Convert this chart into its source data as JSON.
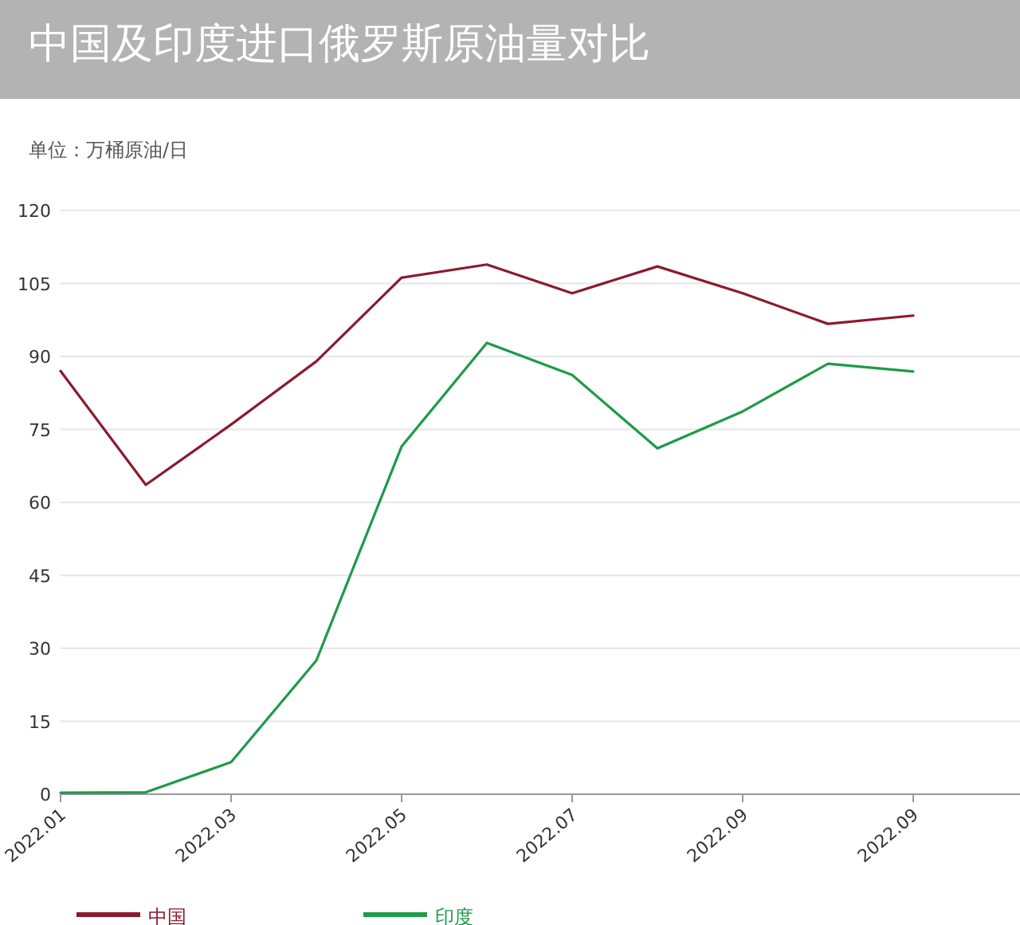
{
  "chart_data": {
    "type": "line",
    "title": "中国及印度进口俄罗斯原油量对比",
    "annotations": [
      "单位：万桶原油/日"
    ],
    "categories": [
      "2022.01",
      null,
      "2022.03",
      null,
      "2022.05",
      null,
      "2022.07",
      null,
      "2022.09",
      null,
      "2022.09"
    ],
    "series": [
      {
        "name": "中国",
        "color": "#8b1a2e",
        "values": [
          87,
          63.6,
          76,
          89,
          106.2,
          108.9,
          103,
          108.5,
          103,
          96.7,
          98.4
        ]
      },
      {
        "name": "印度",
        "color": "#1e9a4a",
        "values": [
          0.3,
          0.4,
          6.6,
          27.5,
          71.5,
          92.8,
          86.2,
          71.1,
          78.7,
          88.5,
          86.9
        ]
      }
    ],
    "ylim": [
      0,
      120
    ],
    "yticks": [
      0,
      15,
      30,
      45,
      60,
      75,
      90,
      105,
      120
    ],
    "grid": "y",
    "legend": "bottom"
  }
}
